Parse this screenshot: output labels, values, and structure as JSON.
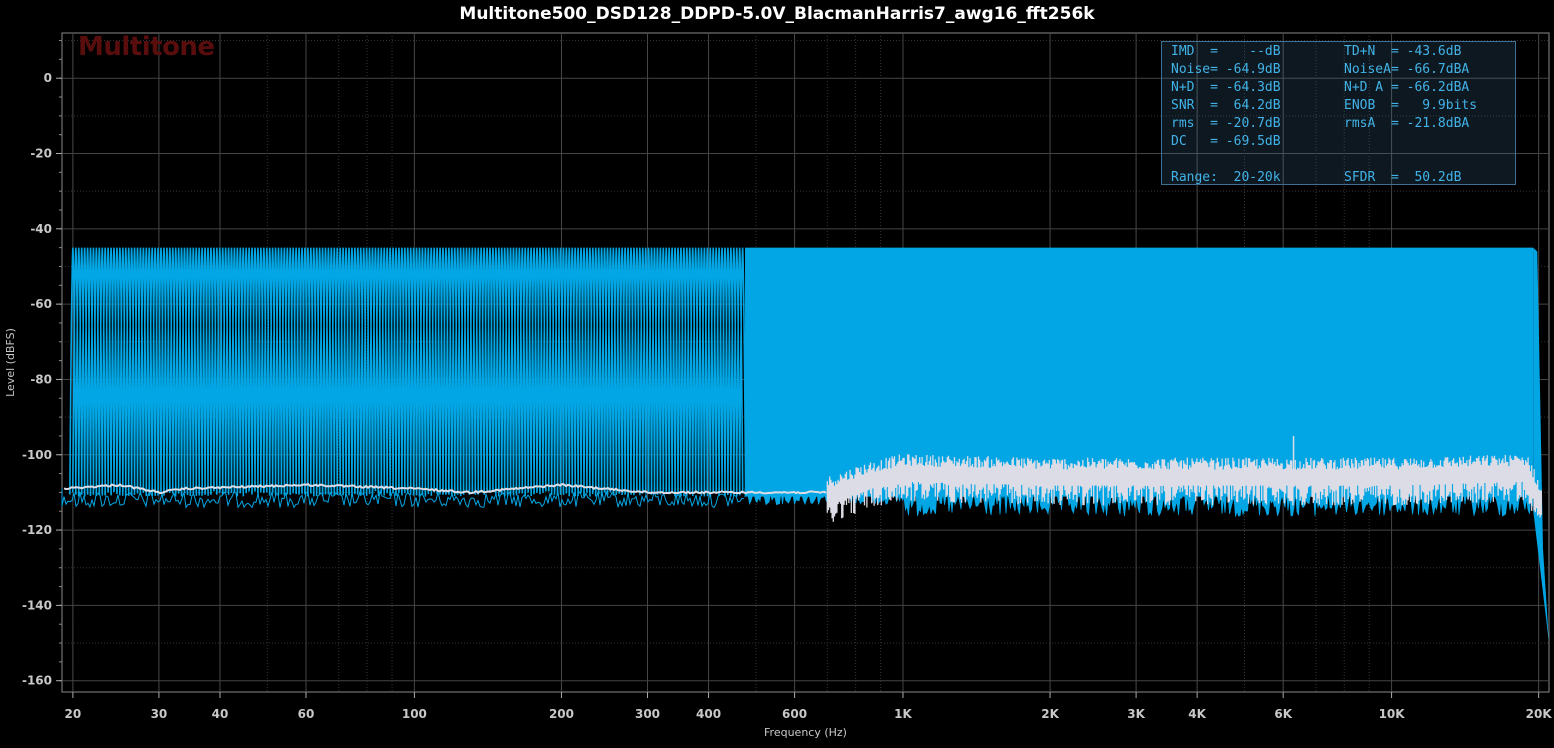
{
  "title": "Multitone500_DSD128_DDPD-5.0V_BlacmanHarris7_awg16_fft256k",
  "watermark": "Multitone",
  "colors": {
    "signal": "#02a6e4",
    "noise_floor": "#dcdce6",
    "grid": "#3a3a3a",
    "stats_text": "#41b3e8",
    "background": "#000000"
  },
  "stats": {
    "rows": [
      {
        "left": "IMD  =    --dB",
        "right": "TD+N  = -43.6dB"
      },
      {
        "left": "Noise= -64.9dB",
        "right": "NoiseA= -66.7dBA"
      },
      {
        "left": "N+D  = -64.3dB",
        "right": "N+D A = -66.2dBA"
      },
      {
        "left": "SNR  =  64.2dB",
        "right": "ENOB  =   9.9bits"
      },
      {
        "left": "rms  = -20.7dB",
        "right": "rmsA  = -21.8dBA"
      },
      {
        "left": "DC   = -69.5dB",
        "right": ""
      },
      {
        "left": "",
        "right": ""
      },
      {
        "left": "Range:  20-20k",
        "right": "SFDR  =  50.2dB"
      }
    ]
  },
  "chart_data": {
    "type": "line",
    "title": "Multitone500_DSD128_DDPD-5.0V_BlacmanHarris7_awg16_fft256k",
    "xlabel": "Frequency (Hz)",
    "ylabel": "Level (dBFS)",
    "x_scale": "log",
    "xlim": [
      19,
      21000
    ],
    "ylim": [
      -163,
      12
    ],
    "grid": true,
    "x_ticks": [
      20,
      30,
      40,
      60,
      100,
      200,
      300,
      400,
      600,
      1000,
      2000,
      3000,
      4000,
      6000,
      10000,
      20000
    ],
    "x_tick_labels": [
      "20",
      "30",
      "40",
      "60",
      "100",
      "200",
      "300",
      "400",
      "600",
      "1K",
      "2K",
      "3K",
      "4K",
      "6K",
      "10K",
      "20K"
    ],
    "y_ticks": [
      0,
      -20,
      -40,
      -60,
      -80,
      -100,
      -120,
      -140,
      -160
    ],
    "series": [
      {
        "role": "multitone spectrum",
        "tone_level_db": -45,
        "floor_db": -109,
        "tone_range_hz": [
          20,
          20000
        ],
        "tone_count": 500,
        "dense_from_hz": 475,
        "rolloff": {
          "start_hz": 19500,
          "end_hz": 21000,
          "end_db": -150
        }
      },
      {
        "role": "noise floor",
        "points": [
          [
            19,
            -109
          ],
          [
            25,
            -108
          ],
          [
            30,
            -110
          ],
          [
            34,
            -109
          ],
          [
            60,
            -108
          ],
          [
            100,
            -109
          ],
          [
            130,
            -110
          ],
          [
            200,
            -108
          ],
          [
            300,
            -110
          ],
          [
            500,
            -110
          ],
          [
            700,
            -110
          ],
          [
            850,
            -106
          ],
          [
            1000,
            -104
          ],
          [
            2000,
            -105
          ],
          [
            5000,
            -105
          ],
          [
            10000,
            -105
          ],
          [
            19000,
            -104
          ],
          [
            20500,
            -114
          ]
        ]
      }
    ]
  }
}
